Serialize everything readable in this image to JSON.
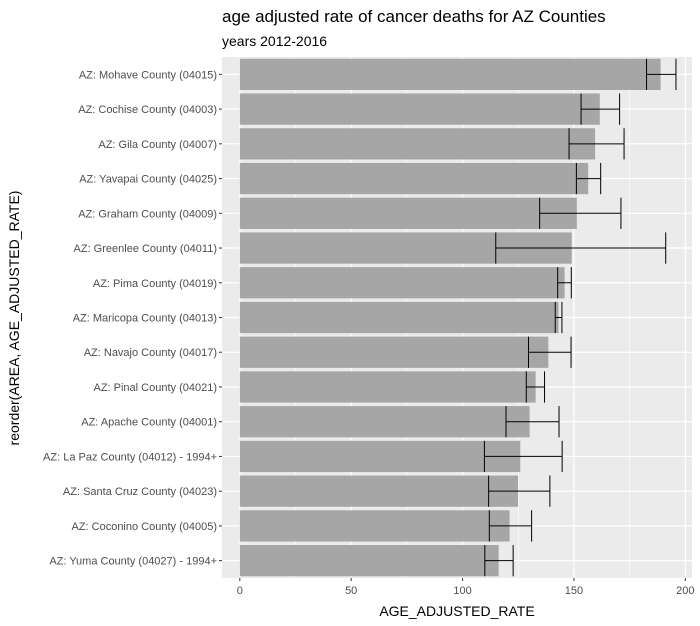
{
  "chart_data": {
    "type": "bar",
    "orientation": "horizontal",
    "title": "age adjusted rate of cancer deaths for AZ Counties",
    "subtitle": "years 2012-2016",
    "xlabel": "AGE_ADJUSTED_RATE",
    "ylabel": "reorder(AREA, AGE_ADJUSTED_RATE)",
    "xlim": [
      -8,
      203
    ],
    "xticks": [
      0,
      50,
      100,
      150,
      200
    ],
    "grid": true,
    "legend": "none",
    "colors": {
      "panel": "#ebebeb",
      "grid": "#ffffff",
      "bar": "#a6a6a6",
      "errorbar": "#000000"
    },
    "categories": [
      "AZ: Mohave County (04015)",
      "AZ: Cochise County (04003)",
      "AZ: Gila County (04007)",
      "AZ: Yavapai County (04025)",
      "AZ: Graham County (04009)",
      "AZ: Greenlee County (04011)",
      "AZ: Pima County (04019)",
      "AZ: Maricopa County (04013)",
      "AZ: Navajo County (04017)",
      "AZ: Pinal County (04021)",
      "AZ: Apache County (04001)",
      "AZ: La Paz County (04012) - 1994+",
      "AZ: Santa Cruz County (04023)",
      "AZ: Coconino County (04005)",
      "AZ: Yuma County (04027) - 1994+"
    ],
    "values": [
      188.9,
      161.6,
      159.5,
      156.4,
      151.3,
      149.0,
      145.8,
      143.1,
      138.5,
      132.8,
      130.1,
      125.9,
      124.9,
      121.1,
      116.2
    ],
    "lower": [
      182.6,
      153.2,
      147.8,
      151.1,
      134.6,
      114.9,
      142.7,
      141.6,
      129.6,
      128.6,
      119.5,
      109.8,
      111.7,
      112.0,
      110.0
    ],
    "upper": [
      195.8,
      170.5,
      172.5,
      162.0,
      171.1,
      191.2,
      148.8,
      144.6,
      148.7,
      136.8,
      143.3,
      144.7,
      139.2,
      131.0,
      122.7
    ]
  }
}
